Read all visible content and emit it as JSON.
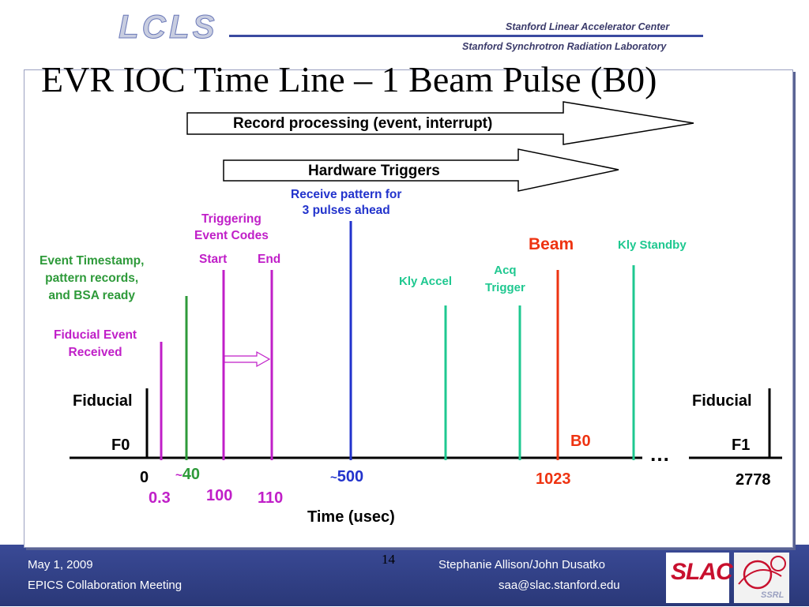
{
  "header": {
    "logo_text": "LCLS",
    "org_line1": "Stanford Linear Accelerator Center",
    "org_line2": "Stanford Synchrotron Radiation Laboratory"
  },
  "slide": {
    "title": "EVR IOC Time Line – 1 Beam Pulse (B0)",
    "slide_number": "14"
  },
  "arrows": {
    "record_processing": "Record processing (event, interrupt)",
    "hardware_triggers": "Hardware Triggers"
  },
  "events": {
    "receive_pattern_line1": "Receive  pattern for",
    "receive_pattern_line2": "3 pulses ahead",
    "triggering_line1": "Triggering",
    "triggering_line2": "Event Codes",
    "start": "Start",
    "end": "End",
    "timestamp_line1": "Event Timestamp,",
    "timestamp_line2": "pattern records,",
    "timestamp_line3": "and BSA ready",
    "fiducial_event_line1": "Fiducial Event",
    "fiducial_event_line2": "Received",
    "beam": "Beam",
    "kly_standby": "Kly Standby",
    "kly_accel": "Kly Accel",
    "acq_line1": "Acq",
    "acq_line2": "Trigger",
    "fiducial_left": "Fiducial",
    "fiducial_right": "Fiducial",
    "f0": "F0",
    "f1": "F1",
    "b0": "B0",
    "ellipsis": "…"
  },
  "axis": {
    "label": "Time (usec)",
    "t0": "0",
    "t03": "0.3",
    "t40_tilde": "~",
    "t40": "40",
    "t100": "100",
    "t110": "110",
    "t500_tilde": "~",
    "t500": "500",
    "t1023": "1023",
    "t2778": "2778"
  },
  "footer": {
    "date": "May 1, 2009",
    "meeting": "EPICS Collaboration Meeting",
    "authors": "Stephanie Allison/John Dusatko",
    "email": "saa@slac.stanford.edu",
    "slac_logo": "SLAC",
    "ssrl_logo": "SSRL"
  },
  "colors": {
    "green": "#2e9a3a",
    "magenta": "#c01fc8",
    "blue": "#2233cc",
    "teal": "#1fc890",
    "orange_red": "#ee3311",
    "band": "#33408a"
  }
}
